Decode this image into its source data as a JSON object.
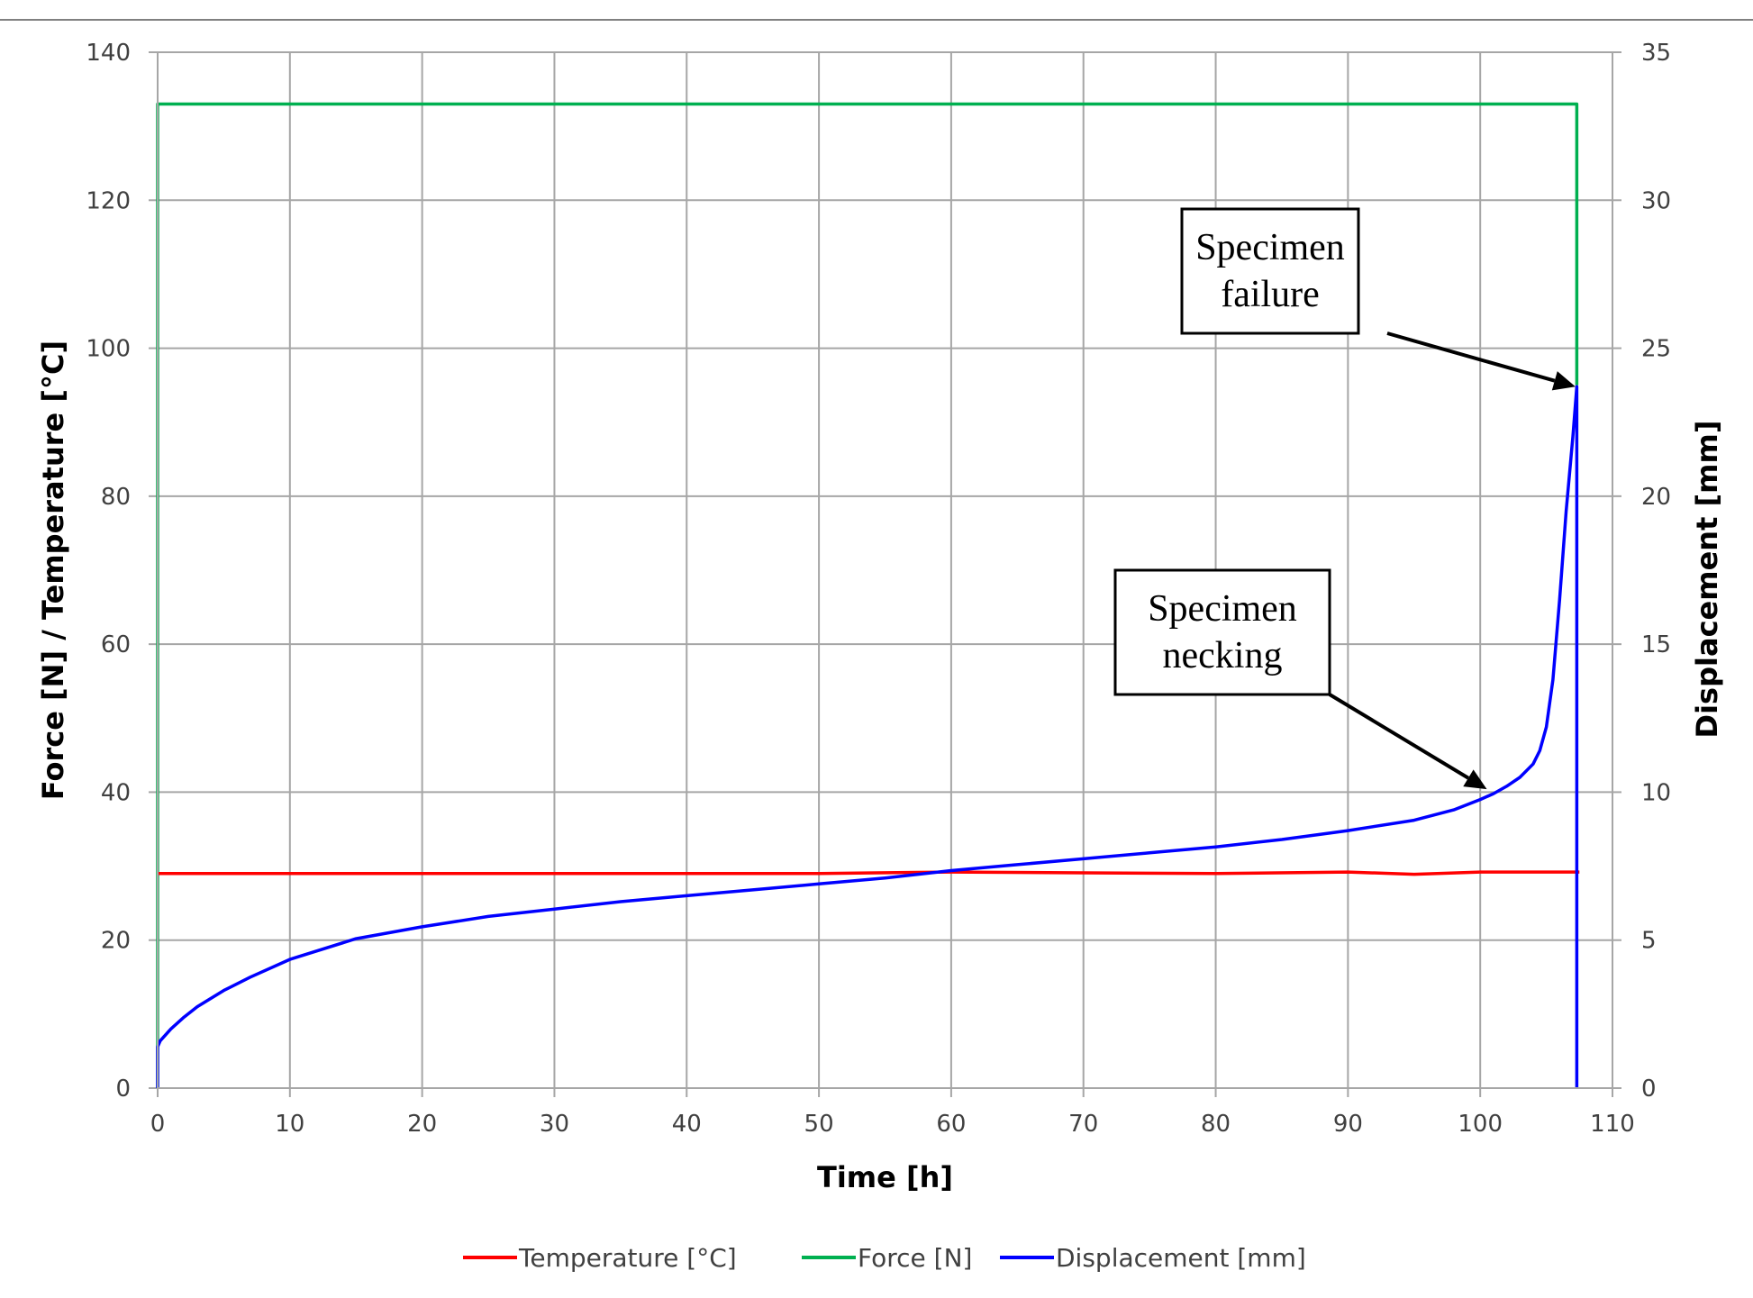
{
  "chart_data": {
    "type": "line",
    "title": "",
    "xlabel": "Time [h]",
    "ylabel_left": "Force [N] / Temperature [°C]",
    "ylabel_right": "Displacement [mm]",
    "xlim": [
      0,
      110
    ],
    "ylim_left": [
      0,
      140
    ],
    "ylim_right": [
      0,
      35
    ],
    "x_ticks": [
      0,
      10,
      20,
      30,
      40,
      50,
      60,
      70,
      80,
      90,
      100,
      110
    ],
    "y_left_ticks": [
      0,
      20,
      40,
      60,
      80,
      100,
      120,
      140
    ],
    "y_right_ticks": [
      0,
      5,
      10,
      15,
      20,
      25,
      30,
      35
    ],
    "grid": true,
    "legend_position": "bottom",
    "series": [
      {
        "name": "Temperature [°C]",
        "axis": "left",
        "color": "#ff0000",
        "x": [
          0,
          50,
          60,
          70,
          80,
          90,
          95,
          100,
          107.5
        ],
        "y": [
          29,
          29,
          29.2,
          29.1,
          29,
          29.2,
          28.9,
          29.2,
          29.2
        ]
      },
      {
        "name": "Force [N]",
        "axis": "left",
        "color": "#00b050",
        "x": [
          0,
          0,
          0.1,
          10,
          20,
          30,
          40,
          50,
          60,
          70,
          80,
          90,
          100,
          107.3,
          107.3
        ],
        "y": [
          0,
          133,
          133,
          133,
          133,
          133,
          133,
          133,
          133,
          133,
          133,
          133,
          133,
          133,
          95
        ]
      },
      {
        "name": "Displacement [mm]",
        "axis": "right",
        "color": "#0000ff",
        "x": [
          0,
          0,
          0.2,
          1,
          2,
          3,
          5,
          7,
          10,
          15,
          20,
          25,
          30,
          35,
          40,
          45,
          50,
          55,
          60,
          65,
          70,
          75,
          80,
          85,
          90,
          95,
          98,
          100,
          101,
          102,
          103,
          104,
          104.5,
          105,
          105.5,
          106,
          106.5,
          107,
          107.3,
          107.3
        ],
        "y": [
          0,
          1.4,
          1.6,
          2.0,
          2.4,
          2.75,
          3.3,
          3.75,
          4.35,
          5.05,
          5.45,
          5.8,
          6.05,
          6.3,
          6.5,
          6.7,
          6.9,
          7.1,
          7.35,
          7.55,
          7.75,
          7.95,
          8.15,
          8.4,
          8.7,
          9.05,
          9.4,
          9.75,
          9.95,
          10.2,
          10.5,
          10.95,
          11.4,
          12.2,
          13.8,
          16.5,
          19.5,
          22.0,
          23.7,
          0
        ]
      }
    ],
    "annotations": [
      {
        "lines": [
          "Specimen",
          "failure"
        ],
        "arrow_to": {
          "x": 107.2,
          "y_right": 23.7
        }
      },
      {
        "lines": [
          "Specimen",
          "necking"
        ],
        "arrow_to": {
          "x": 100.5,
          "y_right": 10.1
        }
      }
    ]
  }
}
